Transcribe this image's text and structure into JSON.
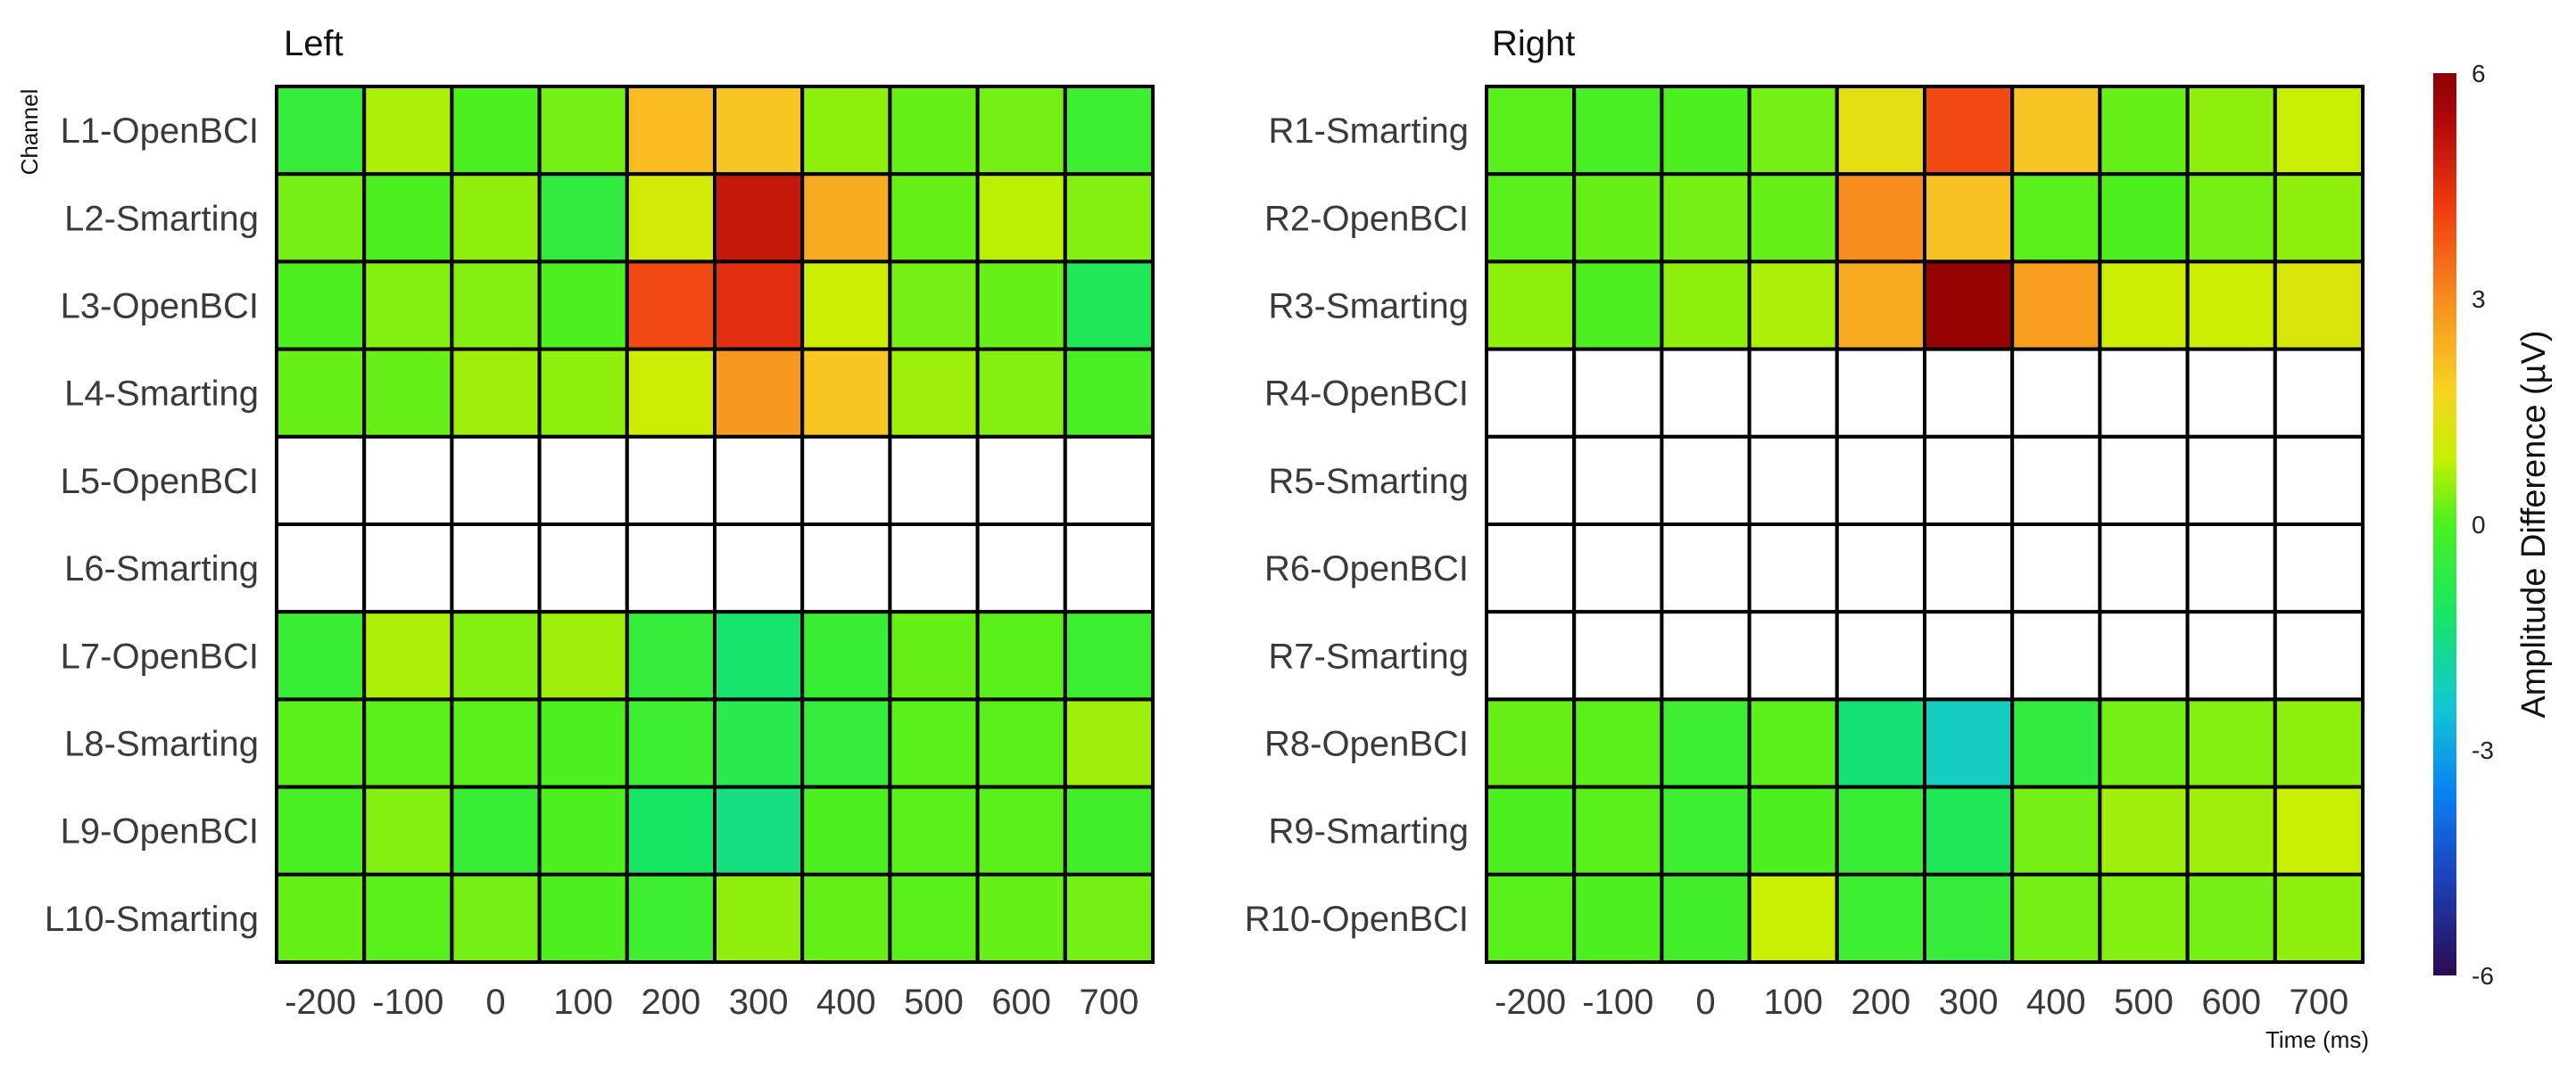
{
  "chart_data": {
    "type": "heatmap",
    "y_axis_label": "Channel",
    "x_axis_label": "Time (ms)",
    "x_categories": [
      "-200",
      "-100",
      "0",
      "100",
      "200",
      "300",
      "400",
      "500",
      "600",
      "700"
    ],
    "colorbar": {
      "label": "Amplitude Difference (µV)",
      "range": [
        -6,
        6
      ],
      "ticks": [
        "6",
        "3",
        "0",
        "-3",
        "-6"
      ],
      "tick_values": [
        6,
        3,
        0,
        -3,
        -6
      ],
      "colors": [
        "#2a0a52",
        "#1e3cb4",
        "#0a7ff5",
        "#12c8d2",
        "#16e664",
        "#4bf01e",
        "#c8f000",
        "#f8d223",
        "#f78c1e",
        "#f03c0f",
        "#b40a0a",
        "#8c0000"
      ],
      "stops": [
        -6,
        -4.8,
        -3.6,
        -2.4,
        -1.2,
        0,
        0.9,
        1.8,
        3.0,
        4.2,
        5.3,
        6
      ]
    },
    "panels": [
      {
        "title": "Left",
        "rows": [
          "L1-OpenBCI",
          "L2-Smarting",
          "L3-OpenBCI",
          "L4-Smarting",
          "L5-OpenBCI",
          "L6-Smarting",
          "L7-OpenBCI",
          "L8-Smarting",
          "L9-OpenBCI",
          "L10-Smarting"
        ],
        "values": [
          [
            -0.5,
            0.7,
            0.0,
            0.3,
            2.2,
            2.0,
            0.5,
            0.2,
            0.3,
            -0.3
          ],
          [
            0.3,
            0.0,
            0.5,
            -0.6,
            1.1,
            5.0,
            2.5,
            0.2,
            0.8,
            0.4
          ],
          [
            0.0,
            0.4,
            0.4,
            0.0,
            4.0,
            4.5,
            1.0,
            0.3,
            0.2,
            -1.0
          ],
          [
            0.2,
            0.2,
            0.6,
            0.5,
            1.0,
            2.8,
            2.0,
            0.6,
            0.4,
            -0.1
          ],
          [
            null,
            null,
            null,
            null,
            null,
            null,
            null,
            null,
            null,
            null
          ],
          [
            null,
            null,
            null,
            null,
            null,
            null,
            null,
            null,
            null,
            null
          ],
          [
            -0.4,
            0.7,
            0.4,
            0.6,
            -0.5,
            -1.3,
            -0.4,
            0.2,
            0.1,
            -0.3
          ],
          [
            0.1,
            0.1,
            0.1,
            0.0,
            -0.3,
            -0.8,
            -0.5,
            0.1,
            0.1,
            0.6
          ],
          [
            -0.1,
            0.4,
            -0.4,
            0.0,
            -1.2,
            -1.5,
            0.0,
            0.1,
            0.1,
            -0.2
          ],
          [
            0.2,
            0.1,
            0.3,
            0.0,
            -0.3,
            0.5,
            0.2,
            0.1,
            0.2,
            0.3
          ]
        ]
      },
      {
        "title": "Right",
        "rows": [
          "R1-Smarting",
          "R2-OpenBCI",
          "R3-Smarting",
          "R4-OpenBCI",
          "R5-Smarting",
          "R6-OpenBCI",
          "R7-Smarting",
          "R8-OpenBCI",
          "R9-Smarting",
          "R10-OpenBCI"
        ],
        "values": [
          [
            0.1,
            -0.1,
            0.0,
            0.3,
            1.4,
            4.0,
            2.0,
            0.2,
            0.5,
            0.9
          ],
          [
            0.1,
            0.2,
            0.3,
            0.2,
            3.0,
            2.1,
            0.1,
            0.0,
            0.3,
            0.5
          ],
          [
            0.5,
            0.0,
            0.5,
            0.7,
            2.5,
            5.8,
            2.7,
            1.0,
            1.0,
            1.2
          ],
          [
            null,
            null,
            null,
            null,
            null,
            null,
            null,
            null,
            null,
            null
          ],
          [
            null,
            null,
            null,
            null,
            null,
            null,
            null,
            null,
            null,
            null
          ],
          [
            null,
            null,
            null,
            null,
            null,
            null,
            null,
            null,
            null,
            null
          ],
          [
            null,
            null,
            null,
            null,
            null,
            null,
            null,
            null,
            null,
            null
          ],
          [
            0.2,
            0.1,
            -0.3,
            0.1,
            -1.4,
            -2.2,
            -0.6,
            0.3,
            0.4,
            0.5
          ],
          [
            0.0,
            0.1,
            -0.3,
            0.0,
            -0.4,
            -1.0,
            0.3,
            0.6,
            0.6,
            0.9
          ],
          [
            0.1,
            0.0,
            -0.2,
            0.9,
            -0.3,
            -0.5,
            0.3,
            0.4,
            0.3,
            0.5
          ]
        ]
      }
    ]
  }
}
